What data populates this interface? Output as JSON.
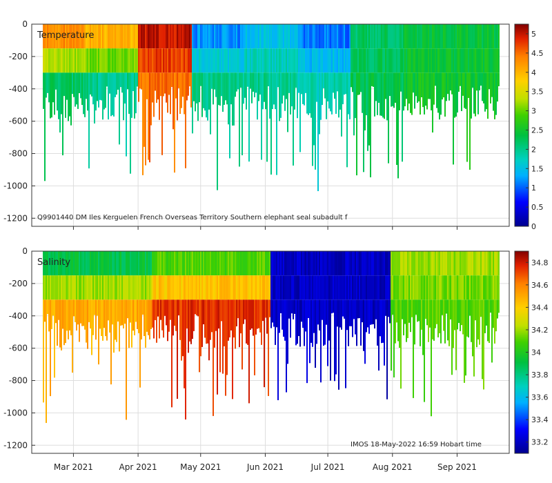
{
  "chart_data": [
    {
      "type": "heatmap",
      "title": "",
      "panel_label": "Temperature",
      "caption": "Q9901440 DM Iles Kerguelen French Overseas Territory Southern elephant seal subadult f",
      "xlabel": "",
      "ylabel": "",
      "x_tick_labels": [
        "Mar 2021",
        "Apr 2021",
        "May 2021",
        "Jun 2021",
        "Jul 2021",
        "Aug 2021",
        "Sep 2021"
      ],
      "x_tick_days": [
        28,
        59,
        89,
        120,
        150,
        181,
        212
      ],
      "x_range_days": [
        8,
        237
      ],
      "y_ticks": [
        0,
        -200,
        -400,
        -600,
        -800,
        -1000,
        -1200
      ],
      "ylim": [
        -1250,
        0
      ],
      "grid": true,
      "colorbar": {
        "min": 0,
        "max": 5.25,
        "ticks": [
          0,
          0.5,
          1,
          1.5,
          2,
          2.5,
          3,
          3.5,
          4,
          4.5,
          5
        ],
        "tick_labels": [
          "0",
          "0.5",
          "1",
          "1.5",
          "2",
          "2.5",
          "3",
          "3.5",
          "4",
          "4.5",
          "5"
        ]
      },
      "profile_depth_summary": {
        "typical_max_depth": [
          -400,
          -600
        ],
        "occasional_max_depth": -1200
      },
      "layers_by_period": [
        {
          "period": "Feb 2021",
          "surface_0_150m": 4.3,
          "deep_150_500m": 2.2
        },
        {
          "period": "Mar 2021",
          "surface_0_150m": 4.0,
          "deep_150_500m": 2.0
        },
        {
          "period": "late Mar 2021",
          "surface_0_150m": 5.0,
          "deep_150_500m": 4.5
        },
        {
          "period": "Apr 2021",
          "surface_0_150m": 1.2,
          "deep_150_500m": 2.0
        },
        {
          "period": "May 2021",
          "surface_0_150m": 1.5,
          "deep_150_500m": 2.0
        },
        {
          "period": "Jun 2021",
          "surface_0_150m": 1.1,
          "deep_150_500m": 1.8
        },
        {
          "period": "Jul 2021",
          "surface_0_150m": 2.2,
          "deep_150_500m": 2.3
        },
        {
          "period": "Aug 2021",
          "surface_0_150m": 2.4,
          "deep_150_500m": 2.5
        },
        {
          "period": "Sep 2021",
          "surface_0_150m": 2.4,
          "deep_150_500m": 2.5
        }
      ]
    },
    {
      "type": "heatmap",
      "title": "",
      "panel_label": "Salinity",
      "caption": "IMOS 18-May-2022 16:59 Hobart time",
      "xlabel": "",
      "ylabel": "",
      "x_tick_labels": [
        "Mar 2021",
        "Apr 2021",
        "May 2021",
        "Jun 2021",
        "Jul 2021",
        "Aug 2021",
        "Sep 2021"
      ],
      "x_tick_days": [
        28,
        59,
        89,
        120,
        150,
        181,
        212
      ],
      "x_range_days": [
        8,
        237
      ],
      "y_ticks": [
        0,
        -200,
        -400,
        -600,
        -800,
        -1000,
        -1200
      ],
      "ylim": [
        -1250,
        0
      ],
      "grid": true,
      "colorbar": {
        "min": 33.1,
        "max": 34.9,
        "ticks": [
          33.2,
          33.4,
          33.6,
          33.8,
          34,
          34.2,
          34.4,
          34.6,
          34.8
        ],
        "tick_labels": [
          "33.2",
          "33.4",
          "33.6",
          "33.8",
          "34",
          "34.2",
          "34.4",
          "34.6",
          "34.8"
        ]
      },
      "layers_by_period": [
        {
          "period": "Feb-Mar 2021",
          "surface_0_150m": 33.9,
          "deep_250_700m": 34.5
        },
        {
          "period": "Apr-Aug 2021",
          "surface_0_150m": 34.1,
          "deep_250_700m": 34.75
        },
        {
          "period": "early Sep 2021",
          "surface_0_150m": 33.2,
          "deep_250_700m": 33.2
        },
        {
          "period": "mid Sep 2021",
          "surface_0_150m": 34.2,
          "deep_250_700m": 34.1
        }
      ]
    }
  ]
}
